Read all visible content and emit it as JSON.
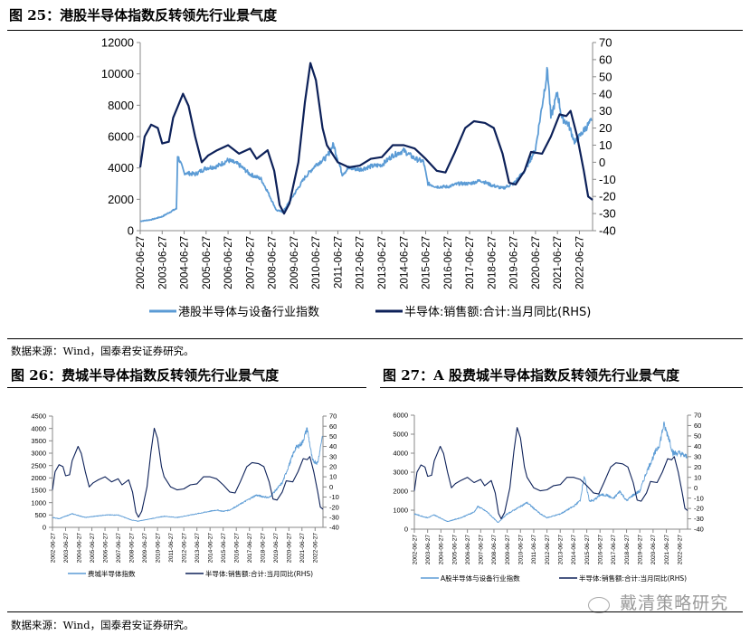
{
  "figures": [
    {
      "title": "图 25：港股半导体指数反转领先行业景气度"
    },
    {
      "title": "图 26：费城半导体指数反转领先行业景气度"
    },
    {
      "title": "图 27：A 股费城半导体指数反转领先行业景气度"
    }
  ],
  "source_note": "数据来源：Wind，国泰君安证券研究。",
  "watermark": "戴清策略研究",
  "colors": {
    "index": "#5b9bd5",
    "yoy": "#0d2159"
  },
  "chart_data": [
    {
      "type": "line",
      "title": "港股半导体指数反转领先行业景气度",
      "x_ticks": [
        "2002-06-27",
        "2003-06-27",
        "2004-06-27",
        "2005-06-27",
        "2006-06-27",
        "2007-06-27",
        "2008-06-27",
        "2009-06-27",
        "2010-06-27",
        "2011-06-27",
        "2012-06-27",
        "2013-06-27",
        "2014-06-27",
        "2015-06-27",
        "2016-06-27",
        "2017-06-27",
        "2018-06-27",
        "2019-06-27",
        "2020-06-27",
        "2021-06-27",
        "2022-06-27"
      ],
      "xlim": [
        2002.5,
        2023.1
      ],
      "ylim_left": [
        0,
        12000
      ],
      "yticks_left": [
        0,
        2000,
        4000,
        6000,
        8000,
        10000,
        12000
      ],
      "ylim_right": [
        -40,
        70
      ],
      "yticks_right": [
        -40,
        -30,
        -20,
        -10,
        0,
        10,
        20,
        30,
        40,
        50,
        60,
        70
      ],
      "legend": "bottom",
      "series": [
        {
          "name": "港股半导体与设备行业指数",
          "axis": "left",
          "x": [
            2002.5,
            2003.0,
            2003.5,
            2004.0,
            2004.15,
            2004.2,
            2004.5,
            2005.0,
            2005.5,
            2006.0,
            2006.5,
            2007.0,
            2007.5,
            2008.0,
            2008.3,
            2008.7,
            2009.0,
            2009.5,
            2010.0,
            2010.5,
            2011.0,
            2011.3,
            2011.7,
            2012.0,
            2012.5,
            2013.0,
            2013.5,
            2014.0,
            2014.5,
            2015.0,
            2015.4,
            2015.6,
            2016.0,
            2016.5,
            2017.0,
            2017.5,
            2018.0,
            2018.5,
            2019.0,
            2019.5,
            2020.0,
            2020.5,
            2020.8,
            2021.05,
            2021.2,
            2021.5,
            2021.7,
            2022.0,
            2022.3,
            2022.7,
            2023.05
          ],
          "values": [
            600,
            700,
            900,
            1300,
            1400,
            4800,
            3700,
            3600,
            4000,
            4100,
            4500,
            4200,
            3600,
            3300,
            2500,
            1300,
            1200,
            2300,
            3400,
            4200,
            4700,
            5500,
            3600,
            4000,
            3900,
            4100,
            4200,
            4800,
            5100,
            4600,
            4400,
            3000,
            2800,
            2800,
            3000,
            3000,
            3200,
            2900,
            2700,
            3000,
            3800,
            5200,
            8000,
            10300,
            7200,
            8800,
            7200,
            6800,
            5600,
            6400,
            7000
          ]
        },
        {
          "name": "半导体:销售额:合计:当月同比(RHS)",
          "axis": "right",
          "x": [
            2002.5,
            2002.7,
            2003.0,
            2003.3,
            2003.5,
            2003.8,
            2004.0,
            2004.45,
            2004.7,
            2005.0,
            2005.3,
            2005.6,
            2006.0,
            2006.5,
            2007.0,
            2007.5,
            2007.8,
            2008.3,
            2008.6,
            2008.85,
            2009.05,
            2009.3,
            2009.7,
            2010.0,
            2010.25,
            2010.5,
            2010.8,
            2011.0,
            2011.5,
            2012.0,
            2012.5,
            2013.0,
            2013.5,
            2014.0,
            2014.5,
            2015.0,
            2015.5,
            2016.0,
            2016.4,
            2016.8,
            2017.3,
            2017.7,
            2018.2,
            2018.6,
            2019.0,
            2019.3,
            2019.6,
            2020.0,
            2020.3,
            2020.8,
            2021.2,
            2021.6,
            2021.9,
            2022.1,
            2022.4,
            2022.7,
            2022.9,
            2023.1
          ],
          "values": [
            -3,
            15,
            22,
            20,
            11,
            12,
            26,
            40,
            33,
            15,
            0,
            4,
            7,
            10,
            5,
            8,
            2,
            7,
            -5,
            -25,
            -30,
            -24,
            0,
            35,
            58,
            48,
            20,
            10,
            0,
            -3,
            -2,
            2,
            3,
            10,
            10,
            8,
            2,
            -5,
            -6,
            5,
            20,
            24,
            23,
            20,
            5,
            -12,
            -13,
            -5,
            6,
            5,
            15,
            28,
            27,
            30,
            15,
            -5,
            -20,
            -22
          ]
        }
      ]
    },
    {
      "type": "line",
      "title": "费城半导体指数反转领先行业景气度",
      "x_ticks": [
        "2002-06-27",
        "2003-06-27",
        "2004-06-27",
        "2005-06-27",
        "2006-06-27",
        "2007-06-27",
        "2008-06-27",
        "2009-06-27",
        "2010-06-27",
        "2011-06-27",
        "2012-06-27",
        "2013-06-27",
        "2014-06-27",
        "2015-06-27",
        "2016-06-27",
        "2017-06-27",
        "2018-06-27",
        "2019-06-27",
        "2020-06-27",
        "2021-06-27",
        "2022-06-27"
      ],
      "xlim": [
        2002.5,
        2023.1
      ],
      "ylim_left": [
        0,
        4500
      ],
      "yticks_left": [
        0,
        500,
        1000,
        1500,
        2000,
        2500,
        3000,
        3500,
        4000,
        4500
      ],
      "ylim_right": [
        -40,
        70
      ],
      "yticks_right": [
        -40,
        -30,
        -20,
        -10,
        0,
        10,
        20,
        30,
        40,
        50,
        60,
        70
      ],
      "legend": "bottom",
      "series": [
        {
          "name": "费城半导体指数",
          "axis": "left",
          "x": [
            2002.5,
            2003.0,
            2004.0,
            2005.0,
            2006.5,
            2007.5,
            2008.5,
            2009.0,
            2010.0,
            2011.0,
            2012.0,
            2013.0,
            2014.0,
            2015.0,
            2015.5,
            2016.0,
            2017.0,
            2018.0,
            2019.0,
            2019.5,
            2020.0,
            2020.5,
            2021.0,
            2021.5,
            2021.9,
            2022.3,
            2022.7,
            2023.05
          ],
          "values": [
            400,
            350,
            550,
            400,
            500,
            500,
            300,
            250,
            350,
            450,
            400,
            500,
            600,
            700,
            650,
            700,
            1000,
            1300,
            1200,
            1500,
            1800,
            2500,
            3200,
            3400,
            4000,
            2700,
            2600,
            3700
          ]
        },
        {
          "name": "半导体:销售额:合计:当月同比(RHS)",
          "axis": "right",
          "x": [
            2002.5,
            2002.7,
            2003.0,
            2003.3,
            2003.5,
            2003.8,
            2004.0,
            2004.45,
            2004.7,
            2005.0,
            2005.3,
            2005.6,
            2006.0,
            2006.5,
            2007.0,
            2007.5,
            2007.8,
            2008.3,
            2008.6,
            2008.85,
            2009.05,
            2009.3,
            2009.7,
            2010.0,
            2010.25,
            2010.5,
            2010.8,
            2011.0,
            2011.5,
            2012.0,
            2012.5,
            2013.0,
            2013.5,
            2014.0,
            2014.5,
            2015.0,
            2015.5,
            2016.0,
            2016.4,
            2016.8,
            2017.3,
            2017.7,
            2018.2,
            2018.6,
            2019.0,
            2019.3,
            2019.6,
            2020.0,
            2020.3,
            2020.8,
            2021.2,
            2021.6,
            2021.9,
            2022.1,
            2022.4,
            2022.7,
            2022.9,
            2023.1
          ],
          "values": [
            -3,
            15,
            22,
            20,
            11,
            12,
            26,
            40,
            33,
            15,
            0,
            4,
            7,
            10,
            5,
            8,
            2,
            7,
            -5,
            -25,
            -30,
            -24,
            0,
            35,
            58,
            48,
            20,
            10,
            0,
            -3,
            -2,
            2,
            3,
            10,
            10,
            8,
            2,
            -5,
            -6,
            5,
            20,
            24,
            23,
            20,
            5,
            -12,
            -13,
            -5,
            6,
            5,
            15,
            28,
            27,
            30,
            15,
            -5,
            -20,
            -22
          ]
        }
      ]
    },
    {
      "type": "line",
      "title": "A 股费城半导体指数反转领先行业景气度",
      "x_ticks": [
        "2002-06-27",
        "2003-06-27",
        "2004-06-27",
        "2005-06-27",
        "2006-06-27",
        "2007-06-27",
        "2008-06-27",
        "2009-06-27",
        "2010-06-27",
        "2011-06-27",
        "2012-06-27",
        "2013-06-27",
        "2014-06-27",
        "2015-06-27",
        "2016-06-27",
        "2017-06-27",
        "2018-06-27",
        "2019-06-27",
        "2020-06-27",
        "2021-06-27",
        "2022-06-27"
      ],
      "xlim": [
        2002.5,
        2023.1
      ],
      "ylim_left": [
        0,
        6000
      ],
      "yticks_left": [
        0,
        1000,
        2000,
        3000,
        4000,
        5000,
        6000
      ],
      "ylim_right": [
        -40,
        70
      ],
      "yticks_right": [
        -40,
        -30,
        -20,
        -10,
        0,
        10,
        20,
        30,
        40,
        50,
        60,
        70
      ],
      "legend": "bottom",
      "series": [
        {
          "name": "A股半导体与设备行业指数",
          "axis": "left",
          "x": [
            2002.5,
            2003.5,
            2004.0,
            2005.0,
            2006.0,
            2007.0,
            2007.3,
            2008.0,
            2008.8,
            2009.5,
            2010.5,
            2011.0,
            2012.0,
            2012.5,
            2013.5,
            2014.5,
            2015.0,
            2015.3,
            2015.7,
            2016.0,
            2016.5,
            2017.0,
            2017.5,
            2018.0,
            2018.5,
            2019.0,
            2019.5,
            2020.0,
            2020.5,
            2021.0,
            2021.3,
            2021.7,
            2022.0,
            2022.5,
            2023.05
          ],
          "values": [
            800,
            600,
            750,
            400,
            600,
            900,
            1200,
            900,
            350,
            800,
            1200,
            1400,
            800,
            600,
            800,
            1200,
            1500,
            2800,
            1500,
            1500,
            1800,
            1800,
            1600,
            2000,
            1500,
            1800,
            2000,
            3000,
            3800,
            4500,
            5500,
            4800,
            4000,
            4000,
            3800
          ]
        },
        {
          "name": "半导体:销售额:合计:当月同比(RHS)",
          "axis": "right",
          "x": [
            2002.5,
            2002.7,
            2003.0,
            2003.3,
            2003.5,
            2003.8,
            2004.0,
            2004.45,
            2004.7,
            2005.0,
            2005.3,
            2005.6,
            2006.0,
            2006.5,
            2007.0,
            2007.5,
            2007.8,
            2008.3,
            2008.6,
            2008.85,
            2009.05,
            2009.3,
            2009.7,
            2010.0,
            2010.25,
            2010.5,
            2010.8,
            2011.0,
            2011.5,
            2012.0,
            2012.5,
            2013.0,
            2013.5,
            2014.0,
            2014.5,
            2015.0,
            2015.5,
            2016.0,
            2016.4,
            2016.8,
            2017.3,
            2017.7,
            2018.2,
            2018.6,
            2019.0,
            2019.3,
            2019.6,
            2020.0,
            2020.3,
            2020.8,
            2021.2,
            2021.6,
            2021.9,
            2022.1,
            2022.4,
            2022.7,
            2022.9,
            2023.1
          ],
          "values": [
            -3,
            15,
            22,
            20,
            11,
            12,
            26,
            40,
            33,
            15,
            0,
            4,
            7,
            10,
            5,
            8,
            2,
            7,
            -5,
            -25,
            -30,
            -24,
            0,
            35,
            58,
            48,
            20,
            10,
            0,
            -3,
            -2,
            2,
            3,
            10,
            10,
            8,
            2,
            -5,
            -6,
            5,
            20,
            24,
            23,
            20,
            5,
            -12,
            -13,
            -5,
            6,
            5,
            15,
            28,
            27,
            30,
            15,
            -5,
            -20,
            -22
          ]
        }
      ]
    }
  ]
}
